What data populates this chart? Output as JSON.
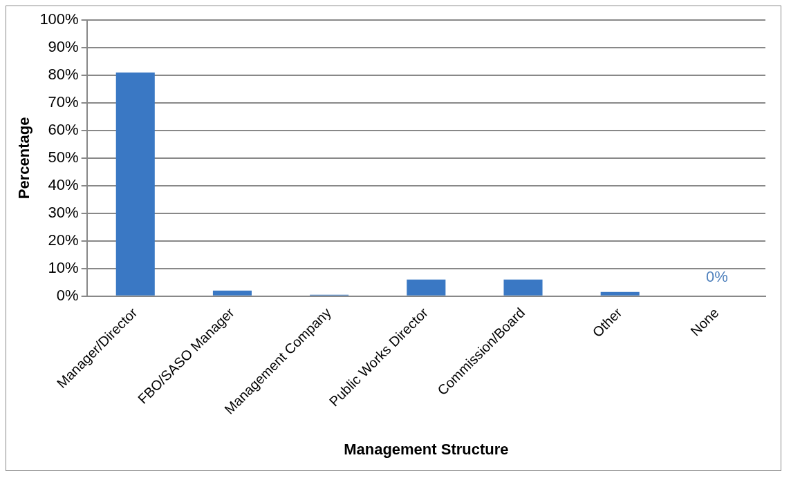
{
  "chart_data": {
    "type": "bar",
    "xlabel": "Management Structure",
    "ylabel": "Percentage",
    "categories": [
      "Manager/Director",
      "FBO/SASO Manager",
      "Management Company",
      "Public Works Director",
      "Commission/Board",
      "Other",
      "None"
    ],
    "values": [
      81,
      2,
      0.5,
      6,
      6,
      1.5,
      0
    ],
    "value_labels": [
      null,
      null,
      null,
      null,
      null,
      null,
      "0%"
    ],
    "color": "#3a78c4",
    "ylim": [
      0,
      100
    ],
    "yticks": [
      {
        "value": 0,
        "label": "0%"
      },
      {
        "value": 10,
        "label": "10%"
      },
      {
        "value": 20,
        "label": "20%"
      },
      {
        "value": 30,
        "label": "30%"
      },
      {
        "value": 40,
        "label": "40%"
      },
      {
        "value": 50,
        "label": "50%"
      },
      {
        "value": 60,
        "label": "60%"
      },
      {
        "value": 70,
        "label": "70%"
      },
      {
        "value": 80,
        "label": "80%"
      },
      {
        "value": 90,
        "label": "90%"
      },
      {
        "value": 100,
        "label": "100%"
      }
    ],
    "grid": "y",
    "legend": false
  }
}
